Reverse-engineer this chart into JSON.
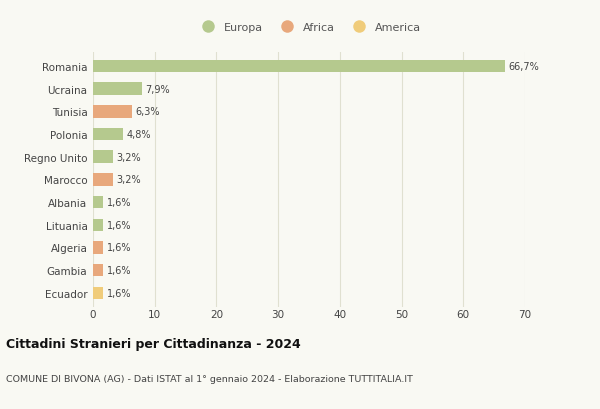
{
  "categories": [
    "Romania",
    "Ucraina",
    "Tunisia",
    "Polonia",
    "Regno Unito",
    "Marocco",
    "Albania",
    "Lituania",
    "Algeria",
    "Gambia",
    "Ecuador"
  ],
  "values": [
    66.7,
    7.9,
    6.3,
    4.8,
    3.2,
    3.2,
    1.6,
    1.6,
    1.6,
    1.6,
    1.6
  ],
  "labels": [
    "66,7%",
    "7,9%",
    "6,3%",
    "4,8%",
    "3,2%",
    "3,2%",
    "1,6%",
    "1,6%",
    "1,6%",
    "1,6%",
    "1,6%"
  ],
  "continents": [
    "Europa",
    "Europa",
    "Africa",
    "Europa",
    "Europa",
    "Africa",
    "Europa",
    "Europa",
    "Africa",
    "Africa",
    "America"
  ],
  "colors": {
    "Europa": "#b5c98e",
    "Africa": "#e8a87c",
    "America": "#f0cc7a"
  },
  "legend_order": [
    "Europa",
    "Africa",
    "America"
  ],
  "title_main": "Cittadini Stranieri per Cittadinanza - 2024",
  "title_sub": "COMUNE DI BIVONA (AG) - Dati ISTAT al 1° gennaio 2024 - Elaborazione TUTTITALIA.IT",
  "xlim": [
    0,
    70
  ],
  "xticks": [
    0,
    10,
    20,
    30,
    40,
    50,
    60,
    70
  ],
  "background_color": "#f9f9f3",
  "grid_color": "#e0e0d0",
  "bar_height": 0.55
}
